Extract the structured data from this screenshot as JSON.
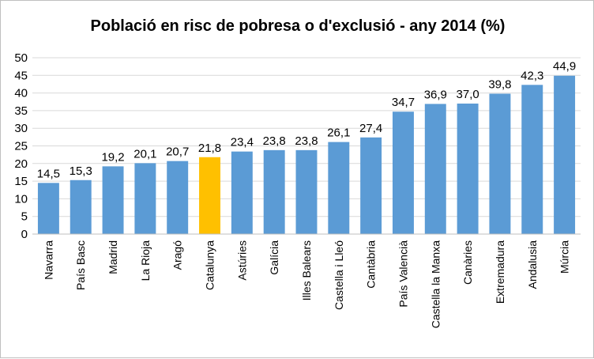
{
  "chart_data": {
    "type": "bar",
    "title": "Població en risc de pobresa o d'exclusió - any 2014 (%)",
    "xlabel": "",
    "ylabel": "",
    "ylim": [
      0,
      50
    ],
    "yticks": [
      "0",
      "5",
      "10",
      "15",
      "20",
      "25",
      "30",
      "35",
      "40",
      "45",
      "50"
    ],
    "grid": true,
    "legend": "none",
    "categories": [
      "Navarra",
      "País Basc",
      "Madrid",
      "La Rioja",
      "Aragó",
      "Catalunya",
      "Astúries",
      "Galícia",
      "Illes Balears",
      "Castella i Lleó",
      "Cantàbria",
      "País Valencià",
      "Castella la Manxa",
      "Canàries",
      "Extremadura",
      "Andalusia",
      "Múrcia"
    ],
    "values": [
      14.5,
      15.3,
      19.2,
      20.1,
      20.7,
      21.8,
      23.4,
      23.8,
      23.8,
      26.1,
      27.4,
      34.7,
      36.9,
      37.0,
      39.8,
      42.3,
      44.9
    ],
    "data_labels": [
      "14,5",
      "15,3",
      "19,2",
      "20,1",
      "20,7",
      "21,8",
      "23,4",
      "23,8",
      "23,8",
      "26,1",
      "27,4",
      "34,7",
      "36,9",
      "37,0",
      "39,8",
      "42,3",
      "44,9"
    ],
    "bar_color": "#5b9bd5",
    "highlight_color": "#ffc000",
    "highlight_category": "Catalunya"
  }
}
